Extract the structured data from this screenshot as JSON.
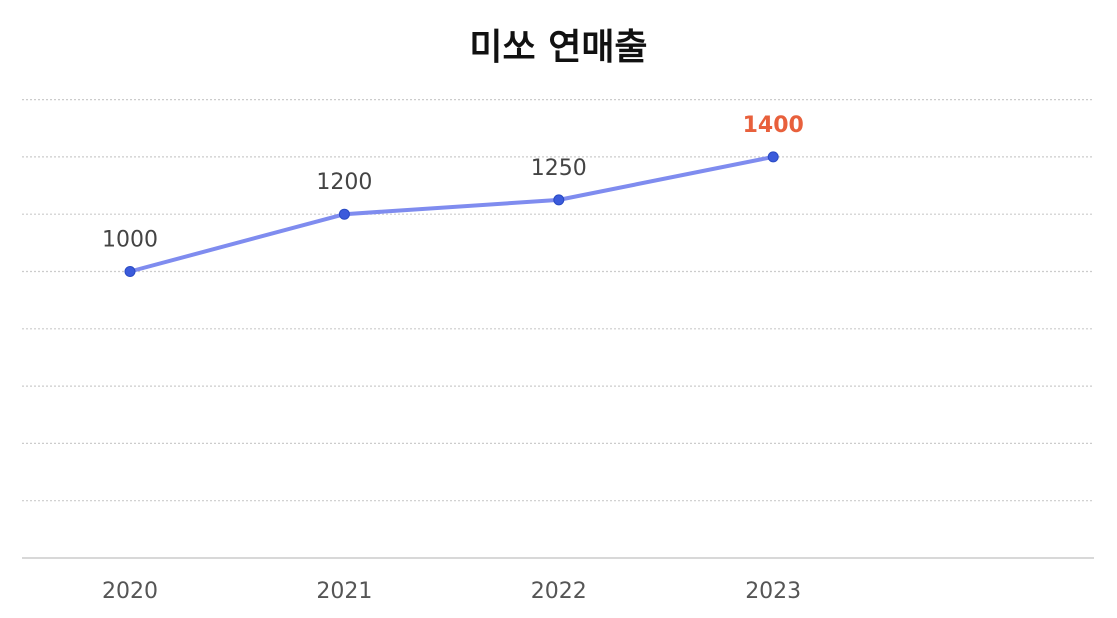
{
  "chart_data": {
    "type": "line",
    "title": "미쏘 연매출",
    "categories": [
      "2020",
      "2021",
      "2022",
      "2023"
    ],
    "series": [
      {
        "values": [
          1000,
          1200,
          1250,
          1400
        ]
      }
    ],
    "data_labels": [
      "1000",
      "1200",
      "1250",
      "1400"
    ],
    "highlight_index": 3,
    "ylim": [
      0,
      1600
    ],
    "gridlines": true,
    "legend": false,
    "xlabel": "",
    "ylabel": ""
  },
  "colors": {
    "line": "#7f8cef",
    "point": "#3b5bdb",
    "highlight_label": "#e8603c",
    "grid": "#cccccc",
    "axis": "#cccccc"
  }
}
